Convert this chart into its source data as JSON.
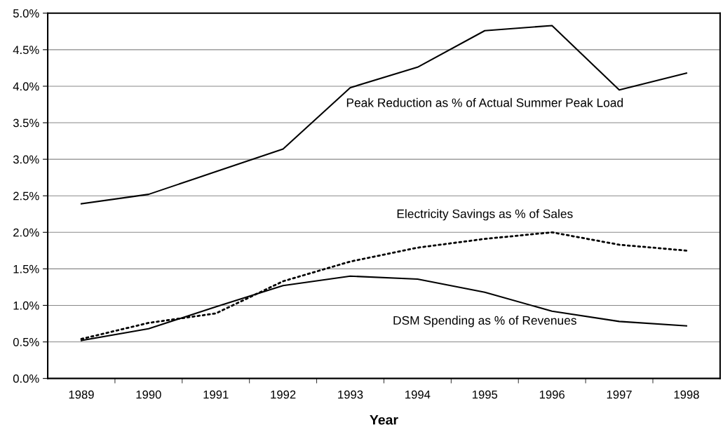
{
  "chart_data": {
    "type": "line",
    "xlabel": "Year",
    "categories": [
      "1989",
      "1990",
      "1991",
      "1992",
      "1993",
      "1994",
      "1995",
      "1996",
      "1997",
      "1998"
    ],
    "series": [
      {
        "name": "Peak Reduction as % of Actual Summer Peak Load",
        "color": "#000000",
        "line_style": "solid",
        "values": [
          2.39,
          2.52,
          2.83,
          3.14,
          3.98,
          4.26,
          4.76,
          4.83,
          3.95,
          4.18
        ]
      },
      {
        "name": "Electricity Savings as % of Sales",
        "color": "#000000",
        "line_style": "dotted",
        "values": [
          0.54,
          0.76,
          0.89,
          1.33,
          1.6,
          1.79,
          1.91,
          2.0,
          1.83,
          1.75
        ]
      },
      {
        "name": "DSM Spending as % of Revenues",
        "color": "#000000",
        "line_style": "solid",
        "values": [
          0.52,
          0.68,
          0.98,
          1.27,
          1.4,
          1.36,
          1.18,
          0.92,
          0.78,
          0.72
        ]
      }
    ],
    "ylim": [
      0,
      5
    ],
    "yticks": [
      {
        "value": 0,
        "label": "0.0%"
      },
      {
        "value": 0.5,
        "label": "0.5%"
      },
      {
        "value": 1,
        "label": "1.0%"
      },
      {
        "value": 1.5,
        "label": "1.5%"
      },
      {
        "value": 2,
        "label": "2.0%"
      },
      {
        "value": 2.5,
        "label": "2.5%"
      },
      {
        "value": 3,
        "label": "3.0%"
      },
      {
        "value": 3.5,
        "label": "3.5%"
      },
      {
        "value": 4,
        "label": "4.0%"
      },
      {
        "value": 4.5,
        "label": "4.5%"
      },
      {
        "value": 5,
        "label": "5.0%"
      }
    ],
    "grid": "y",
    "marker": "none"
  }
}
